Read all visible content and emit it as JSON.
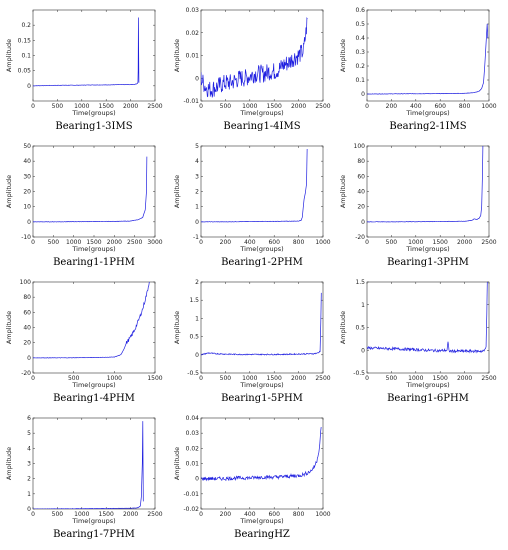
{
  "chart_data": [
    {
      "type": "line",
      "caption": "Bearing1-3IMS",
      "xlabel": "Time(groups)",
      "ylabel": "Amplitude",
      "xlim": [
        0,
        2500
      ],
      "ylim": [
        -0.05,
        0.25
      ],
      "xticks": [
        0,
        500,
        1000,
        1500,
        2000,
        2500
      ],
      "yticks": [
        0,
        0.05,
        0.1,
        0.15,
        0.2
      ],
      "ytick_labels": [
        "0",
        "0.05",
        "0.1",
        "0.15",
        "0.2"
      ],
      "series": [
        {
          "color": "#1f1fe0",
          "x": [
            0,
            300,
            600,
            900,
            1200,
            1500,
            1800,
            2000,
            2080,
            2110,
            2140,
            2150,
            2155,
            2160,
            2170
          ],
          "y": [
            0,
            0.001,
            0.002,
            0.002,
            0.003,
            0.003,
            0.004,
            0.004,
            0.005,
            0.006,
            0.008,
            0.012,
            0.05,
            0.225,
            0.01
          ]
        }
      ]
    },
    {
      "type": "line",
      "caption": "Bearing1-4IMS",
      "xlabel": "Time(groups)",
      "ylabel": "Amplitude",
      "xlim": [
        0,
        2500
      ],
      "ylim": [
        -0.01,
        0.03
      ],
      "xticks": [
        0,
        500,
        1000,
        1500,
        2000,
        2500
      ],
      "yticks": [
        -0.01,
        0,
        0.01,
        0.02,
        0.03
      ],
      "ytick_labels": [
        "-0.01",
        "0",
        "0.01",
        "0.02",
        "0.03"
      ],
      "series": [
        {
          "color": "#1f1fe0",
          "x": [
            0,
            100,
            200,
            300,
            400,
            500,
            600,
            700,
            800,
            900,
            1000,
            1100,
            1200,
            1300,
            1400,
            1500,
            1600,
            1700,
            1800,
            1900,
            2000,
            2100,
            2150,
            2180
          ],
          "y": [
            0.0,
            -0.004,
            -0.005,
            -0.004,
            -0.003,
            -0.002,
            -0.002,
            -0.001,
            0.0,
            0.0,
            0.001,
            0.002,
            0.002,
            0.002,
            0.003,
            0.003,
            0.004,
            0.006,
            0.007,
            0.009,
            0.01,
            0.012,
            0.02,
            0.026
          ]
        }
      ],
      "noise": 0.004
    },
    {
      "type": "line",
      "caption": "Bearing2-1IMS",
      "xlabel": "Time(groups)",
      "ylabel": "Amplitude",
      "xlim": [
        0,
        1000
      ],
      "ylim": [
        -0.05,
        0.6
      ],
      "xticks": [
        0,
        200,
        400,
        600,
        800,
        1000
      ],
      "yticks": [
        0,
        0.1,
        0.2,
        0.3,
        0.4,
        0.5,
        0.6
      ],
      "ytick_labels": [
        "0",
        "0.1",
        "0.2",
        "0.3",
        "0.4",
        "0.5",
        "0.6"
      ],
      "series": [
        {
          "color": "#1f1fe0",
          "x": [
            0,
            200,
            400,
            600,
            800,
            880,
            920,
            940,
            955,
            965,
            975,
            985,
            990
          ],
          "y": [
            0,
            0.001,
            0.002,
            0.003,
            0.005,
            0.01,
            0.02,
            0.04,
            0.08,
            0.2,
            0.35,
            0.5,
            0.4
          ]
        }
      ]
    },
    {
      "type": "line",
      "caption": "Bearing1-1PHM",
      "xlabel": "Time(groups)",
      "ylabel": "Amplitude",
      "xlim": [
        0,
        3000
      ],
      "ylim": [
        -10,
        50
      ],
      "xticks": [
        0,
        500,
        1000,
        1500,
        2000,
        2500,
        3000
      ],
      "yticks": [
        -10,
        0,
        10,
        20,
        30,
        40,
        50
      ],
      "ytick_labels": [
        "-10",
        "0",
        "10",
        "20",
        "30",
        "40",
        "50"
      ],
      "series": [
        {
          "color": "#1f1fe0",
          "x": [
            0,
            500,
            1000,
            1500,
            2000,
            2400,
            2600,
            2700,
            2760,
            2790,
            2800
          ],
          "y": [
            0,
            0,
            0.1,
            0.2,
            0.3,
            0.5,
            1.5,
            3,
            8,
            20,
            43
          ]
        }
      ]
    },
    {
      "type": "line",
      "caption": "Bearing1-2PHM",
      "xlabel": "Time(groups)",
      "ylabel": "Amplitude",
      "xlim": [
        0,
        1000
      ],
      "ylim": [
        -1,
        5
      ],
      "xticks": [
        0,
        200,
        400,
        600,
        800,
        1000
      ],
      "yticks": [
        -1,
        0,
        1,
        2,
        3,
        4,
        5
      ],
      "ytick_labels": [
        "-1",
        "0",
        "1",
        "2",
        "3",
        "4",
        "5"
      ],
      "series": [
        {
          "color": "#1f1fe0",
          "x": [
            0,
            200,
            400,
            600,
            800,
            820,
            830,
            845,
            855,
            865,
            870
          ],
          "y": [
            0,
            0,
            0.02,
            0.03,
            0.05,
            0.1,
            0.3,
            1.5,
            1.9,
            2.5,
            4.8
          ]
        }
      ]
    },
    {
      "type": "line",
      "caption": "Bearing1-3PHM",
      "xlabel": "Time(groups)",
      "ylabel": "Amplitude",
      "xlim": [
        0,
        2500
      ],
      "ylim": [
        -20,
        100
      ],
      "xticks": [
        0,
        500,
        1000,
        1500,
        2000,
        2500
      ],
      "yticks": [
        -20,
        0,
        20,
        40,
        60,
        80,
        100
      ],
      "ytick_labels": [
        "-20",
        "0",
        "20",
        "40",
        "60",
        "80",
        "100"
      ],
      "series": [
        {
          "color": "#1f1fe0",
          "x": [
            0,
            500,
            1000,
            1500,
            2000,
            2150,
            2200,
            2250,
            2300,
            2330,
            2350,
            2365,
            2375
          ],
          "y": [
            0,
            0,
            0.2,
            0.4,
            0.8,
            2,
            4,
            3,
            5,
            8,
            20,
            60,
            100
          ]
        }
      ]
    },
    {
      "type": "line",
      "caption": "Bearing1-4PHM",
      "xlabel": "Time(groups)",
      "ylabel": "Amplitude",
      "xlim": [
        0,
        1500
      ],
      "ylim": [
        -20,
        100
      ],
      "xticks": [
        0,
        500,
        1000,
        1500
      ],
      "yticks": [
        -20,
        0,
        20,
        40,
        60,
        80,
        100
      ],
      "ytick_labels": [
        "-20",
        "0",
        "20",
        "40",
        "60",
        "80",
        "100"
      ],
      "series": [
        {
          "color": "#1f1fe0",
          "x": [
            0,
            400,
            800,
            1000,
            1080,
            1120,
            1150,
            1200,
            1250,
            1300,
            1350,
            1400,
            1430
          ],
          "y": [
            0,
            0,
            0.5,
            1,
            4,
            12,
            20,
            27,
            37,
            50,
            65,
            85,
            100
          ]
        }
      ],
      "noise": 2.5,
      "noise_from": 1150
    },
    {
      "type": "line",
      "caption": "Bearing1-5PHM",
      "xlabel": "Time(groups)",
      "ylabel": "Amplitude",
      "xlim": [
        0,
        2500
      ],
      "ylim": [
        -0.5,
        2
      ],
      "xticks": [
        0,
        500,
        1000,
        1500,
        2000,
        2500
      ],
      "yticks": [
        -0.5,
        0,
        0.5,
        1,
        1.5,
        2
      ],
      "ytick_labels": [
        "-0.5",
        "0",
        "0.5",
        "1",
        "1.5",
        "2"
      ],
      "series": [
        {
          "color": "#1f1fe0",
          "x": [
            0,
            150,
            300,
            500,
            800,
            1200,
            1600,
            2000,
            2300,
            2400,
            2440,
            2455,
            2465
          ],
          "y": [
            0,
            0.05,
            0.03,
            0.02,
            0.01,
            0.01,
            0.01,
            0.02,
            0.03,
            0.05,
            0.1,
            0.9,
            1.7
          ]
        }
      ],
      "noise": 0.015
    },
    {
      "type": "line",
      "caption": "Bearing1-6PHM",
      "xlabel": "Time(groups)",
      "ylabel": "Amplitude",
      "xlim": [
        0,
        2500
      ],
      "ylim": [
        -0.5,
        1.5
      ],
      "xticks": [
        0,
        500,
        1000,
        1500,
        2000,
        2500
      ],
      "yticks": [
        -0.5,
        0,
        0.5,
        1,
        1.5
      ],
      "ytick_labels": [
        "-0.5",
        "0",
        "0.5",
        "1",
        "1.5"
      ],
      "series": [
        {
          "color": "#1f1fe0",
          "x": [
            0,
            300,
            600,
            900,
            1200,
            1500,
            1640,
            1660,
            1680,
            1700,
            2000,
            2400,
            2440,
            2455,
            2465
          ],
          "y": [
            0.05,
            0.04,
            0.03,
            0.02,
            0.0,
            -0.01,
            0.0,
            0.18,
            -0.01,
            -0.02,
            -0.02,
            -0.02,
            0.1,
            0.8,
            1.5
          ]
        }
      ],
      "noise": 0.03
    },
    {
      "type": "line",
      "caption": "Bearing1-7PHM",
      "xlabel": "Time(groups)",
      "ylabel": "Amplitude",
      "xlim": [
        0,
        2500
      ],
      "ylim": [
        0,
        6
      ],
      "xticks": [
        0,
        500,
        1000,
        1500,
        2000,
        2500
      ],
      "yticks": [
        0,
        1,
        2,
        3,
        4,
        5,
        6
      ],
      "ytick_labels": [
        "0",
        "1",
        "2",
        "3",
        "4",
        "5",
        "6"
      ],
      "series": [
        {
          "color": "#1f1fe0",
          "x": [
            0,
            500,
            1000,
            1500,
            2000,
            2150,
            2200,
            2220,
            2240,
            2250,
            2260
          ],
          "y": [
            0,
            0.01,
            0.02,
            0.03,
            0.05,
            0.08,
            0.2,
            0.8,
            3,
            5.8,
            0.5
          ]
        }
      ]
    },
    {
      "type": "line",
      "caption": "BearingHZ",
      "xlabel": "Time(groups)",
      "ylabel": "Amplitude",
      "xlim": [
        0,
        1000
      ],
      "ylim": [
        -0.02,
        0.04
      ],
      "xticks": [
        0,
        200,
        400,
        600,
        800,
        1000
      ],
      "yticks": [
        -0.02,
        -0.01,
        0,
        0.01,
        0.02,
        0.03,
        0.04
      ],
      "ytick_labels": [
        "-0.02",
        "-0.01",
        "0",
        "0.01",
        "0.02",
        "0.03",
        "0.04"
      ],
      "series": [
        {
          "color": "#1f1fe0",
          "x": [
            0,
            100,
            200,
            300,
            400,
            500,
            600,
            700,
            800,
            850,
            900,
            930,
            950,
            970,
            985
          ],
          "y": [
            0,
            0,
            0,
            0.0005,
            0.0005,
            0.001,
            0.001,
            0.0015,
            0.002,
            0.003,
            0.005,
            0.008,
            0.012,
            0.02,
            0.034
          ]
        }
      ],
      "noise": 0.0012
    }
  ]
}
